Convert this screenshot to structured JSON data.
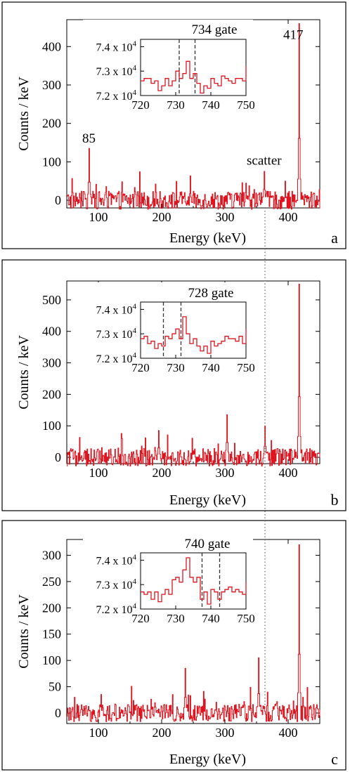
{
  "chart_data": [
    {
      "type": "line",
      "panel_label": "a",
      "xlabel": "Energy (keV)",
      "ylabel": "Counts / keV",
      "xlim": [
        50,
        450
      ],
      "ylim": [
        -20,
        470
      ],
      "xticks": [
        100,
        200,
        300,
        400
      ],
      "yticks": [
        0,
        100,
        200,
        300,
        400
      ],
      "color": "#e0141e",
      "peaks": [
        {
          "x": 85,
          "y": 135
        },
        {
          "x": 362,
          "y": 75
        },
        {
          "x": 417,
          "y": 460
        }
      ],
      "annotations": [
        {
          "text": "85",
          "x": 85,
          "y": 150
        },
        {
          "text": "scatter",
          "x": 362,
          "y": 92
        },
        {
          "text": "417",
          "x": 408,
          "y": 420
        }
      ],
      "inset": {
        "title": "734 gate",
        "xlim": [
          720,
          750
        ],
        "ylim": [
          72000,
          74300
        ],
        "xticks": [
          720,
          730,
          740,
          750
        ],
        "yticks": [
          {
            "value": 72000,
            "mant": "7.2 x 10",
            "exp": "4"
          },
          {
            "value": 73000,
            "mant": "7.3 x 10",
            "exp": "4"
          },
          {
            "value": 74000,
            "mant": "7.4 x 10",
            "exp": "4"
          }
        ],
        "gate": [
          731,
          735.5
        ],
        "x": [
          720,
          721,
          722,
          723,
          724,
          725,
          726,
          727,
          728,
          729,
          730,
          731,
          732,
          733,
          734,
          735,
          736,
          737,
          738,
          739,
          740,
          741,
          742,
          743,
          744,
          745,
          746,
          747,
          748,
          749,
          750
        ],
        "y": [
          72600,
          72700,
          72700,
          72500,
          72600,
          72200,
          72400,
          72700,
          72400,
          72600,
          73000,
          72700,
          72900,
          73400,
          72700,
          72900,
          72500,
          72100,
          72400,
          72300,
          72700,
          72500,
          72400,
          72800,
          72700,
          72600,
          72500,
          72700,
          72700,
          72600,
          73200
        ]
      }
    },
    {
      "type": "line",
      "panel_label": "b",
      "xlabel": "Energy (keV)",
      "ylabel": "Counts / keV",
      "xlim": [
        50,
        450
      ],
      "ylim": [
        -20,
        560
      ],
      "xticks": [
        100,
        200,
        300,
        400
      ],
      "yticks": [
        0,
        100,
        200,
        300,
        400,
        500
      ],
      "color": "#e0141e",
      "peaks": [
        {
          "x": 195,
          "y": 85
        },
        {
          "x": 303,
          "y": 135
        },
        {
          "x": 363,
          "y": 100
        },
        {
          "x": 417,
          "y": 550
        }
      ],
      "annotations": [],
      "inset": {
        "title": "728 gate",
        "xlim": [
          720,
          750
        ],
        "ylim": [
          72000,
          74300
        ],
        "xticks": [
          720,
          730,
          740,
          750
        ],
        "yticks": [
          {
            "value": 72000,
            "mant": "7.2 x 10",
            "exp": "4"
          },
          {
            "value": 73000,
            "mant": "7.3 x 10",
            "exp": "4"
          },
          {
            "value": 74000,
            "mant": "7.4 x 10",
            "exp": "4"
          }
        ],
        "gate": [
          726.5,
          731.5
        ],
        "x": [
          720,
          721,
          722,
          723,
          724,
          725,
          726,
          727,
          728,
          729,
          730,
          731,
          732,
          733,
          734,
          735,
          736,
          737,
          738,
          739,
          740,
          741,
          742,
          743,
          744,
          745,
          746,
          747,
          748,
          749,
          750
        ],
        "y": [
          72800,
          72900,
          72600,
          72700,
          72400,
          72600,
          72500,
          72900,
          72800,
          73000,
          73200,
          72800,
          73700,
          73000,
          72600,
          72800,
          72500,
          72300,
          72500,
          72200,
          72700,
          72500,
          72600,
          72700,
          72900,
          72800,
          72800,
          72700,
          72900,
          72600,
          73200
        ]
      }
    },
    {
      "type": "line",
      "panel_label": "c",
      "xlabel": "Energy (keV)",
      "ylabel": "Counts / keV",
      "xlim": [
        50,
        450
      ],
      "ylim": [
        -20,
        330
      ],
      "xticks": [
        100,
        200,
        300,
        400
      ],
      "yticks": [
        0,
        50,
        100,
        150,
        200,
        250,
        300
      ],
      "color": "#e0141e",
      "peaks": [
        {
          "x": 237,
          "y": 85
        },
        {
          "x": 353,
          "y": 105
        },
        {
          "x": 417,
          "y": 320
        }
      ],
      "annotations": [],
      "inset": {
        "title": "740 gate",
        "xlim": [
          720,
          750
        ],
        "ylim": [
          72000,
          74300
        ],
        "xticks": [
          720,
          730,
          740,
          750
        ],
        "yticks": [
          {
            "value": 72000,
            "mant": "7.2 x 10",
            "exp": "4"
          },
          {
            "value": 73000,
            "mant": "7.3 x 10",
            "exp": "4"
          },
          {
            "value": 74000,
            "mant": "7.4 x 10",
            "exp": "4"
          }
        ],
        "gate": [
          737.5,
          742.5
        ],
        "x": [
          720,
          721,
          722,
          723,
          724,
          725,
          726,
          727,
          728,
          729,
          730,
          731,
          732,
          733,
          734,
          735,
          736,
          737,
          738,
          739,
          740,
          741,
          742,
          743,
          744,
          745,
          746,
          747,
          748,
          749,
          750
        ],
        "y": [
          72700,
          72600,
          72700,
          72400,
          72700,
          72300,
          72600,
          72800,
          72600,
          73200,
          73300,
          73100,
          73600,
          74100,
          73300,
          73100,
          73300,
          72400,
          72700,
          72200,
          72800,
          72700,
          72400,
          72700,
          72800,
          72900,
          72700,
          72800,
          72700,
          72600,
          73100
        ]
      }
    }
  ]
}
